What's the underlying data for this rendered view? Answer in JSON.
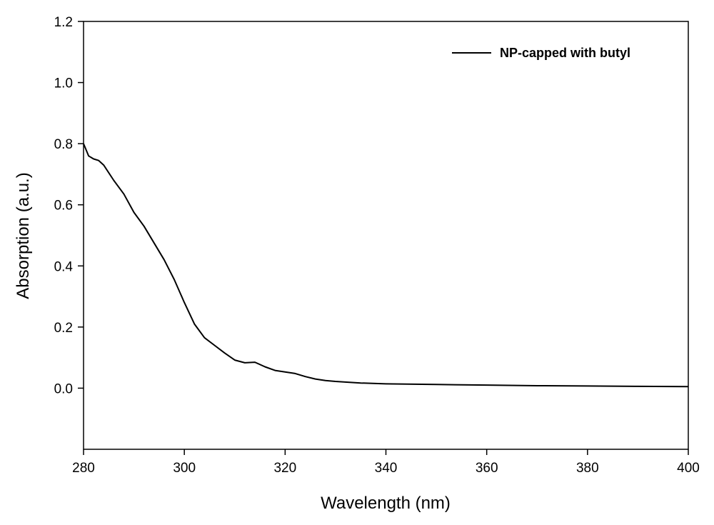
{
  "chart_data": {
    "type": "line",
    "title": "",
    "xlabel": "Wavelength (nm)",
    "ylabel": "Absorption (a.u.)",
    "xlim": [
      280,
      400
    ],
    "ylim": [
      -0.2,
      1.2
    ],
    "xticks": [
      "280",
      "300",
      "320",
      "340",
      "360",
      "380",
      "400"
    ],
    "yticks": [
      "0.0",
      "0.2",
      "0.4",
      "0.6",
      "0.8",
      "1.0",
      "1.2"
    ],
    "grid": false,
    "legend_position": "top-right",
    "series": [
      {
        "name": "NP-capped with butyl",
        "color": "#000000",
        "x": [
          280,
          281,
          282,
          283,
          284,
          286,
          288,
          290,
          292,
          294,
          296,
          298,
          300,
          302,
          304,
          306,
          308,
          310,
          312,
          314,
          316,
          318,
          320,
          322,
          324,
          326,
          328,
          330,
          335,
          340,
          350,
          360,
          370,
          380,
          390,
          400
        ],
        "y": [
          0.8,
          0.76,
          0.75,
          0.745,
          0.73,
          0.68,
          0.635,
          0.575,
          0.53,
          0.475,
          0.42,
          0.355,
          0.28,
          0.21,
          0.165,
          0.14,
          0.115,
          0.092,
          0.083,
          0.085,
          0.07,
          0.058,
          0.053,
          0.048,
          0.038,
          0.03,
          0.025,
          0.022,
          0.017,
          0.014,
          0.012,
          0.01,
          0.008,
          0.007,
          0.006,
          0.005
        ]
      }
    ]
  }
}
